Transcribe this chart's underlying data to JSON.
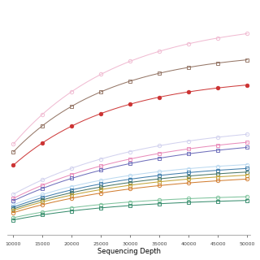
{
  "xlabel": "Sequencing Depth",
  "xlim": [
    10000,
    50000
  ],
  "xticks": [
    10000,
    15000,
    20000,
    25000,
    30000,
    35000,
    40000,
    45000,
    50000
  ],
  "background": "#ffffff",
  "curves": [
    {
      "color": "#f0b8d0",
      "marker": "o",
      "filled": false,
      "K": 4200,
      "r": 5.5e-05
    },
    {
      "color": "#907060",
      "marker": "s",
      "filled": false,
      "K": 3600,
      "r": 6e-05
    },
    {
      "color": "#cc3333",
      "marker": "o",
      "filled": true,
      "K": 3100,
      "r": 5.8e-05
    },
    {
      "color": "#d0d0ee",
      "marker": "o",
      "filled": false,
      "K": 2200,
      "r": 4.5e-05
    },
    {
      "color": "#e888b8",
      "marker": "s",
      "filled": false,
      "K": 2050,
      "r": 4.3e-05
    },
    {
      "color": "#6868b8",
      "marker": "s",
      "filled": false,
      "K": 1950,
      "r": 4.2e-05
    },
    {
      "color": "#b8d8f0",
      "marker": "o",
      "filled": false,
      "K": 1500,
      "r": 5e-05
    },
    {
      "color": "#3878a8",
      "marker": "s",
      "filled": false,
      "K": 1430,
      "r": 4.8e-05
    },
    {
      "color": "#407060",
      "marker": "o",
      "filled": false,
      "K": 1360,
      "r": 4.7e-05
    },
    {
      "color": "#c0a030",
      "marker": "s",
      "filled": false,
      "K": 1300,
      "r": 4.6e-05
    },
    {
      "color": "#d07828",
      "marker": "o",
      "filled": false,
      "K": 1230,
      "r": 4.4e-05
    },
    {
      "color": "#78c098",
      "marker": "o",
      "filled": false,
      "K": 800,
      "r": 5.5e-05
    },
    {
      "color": "#308868",
      "marker": "s",
      "filled": false,
      "K": 730,
      "r": 5.2e-05
    }
  ]
}
